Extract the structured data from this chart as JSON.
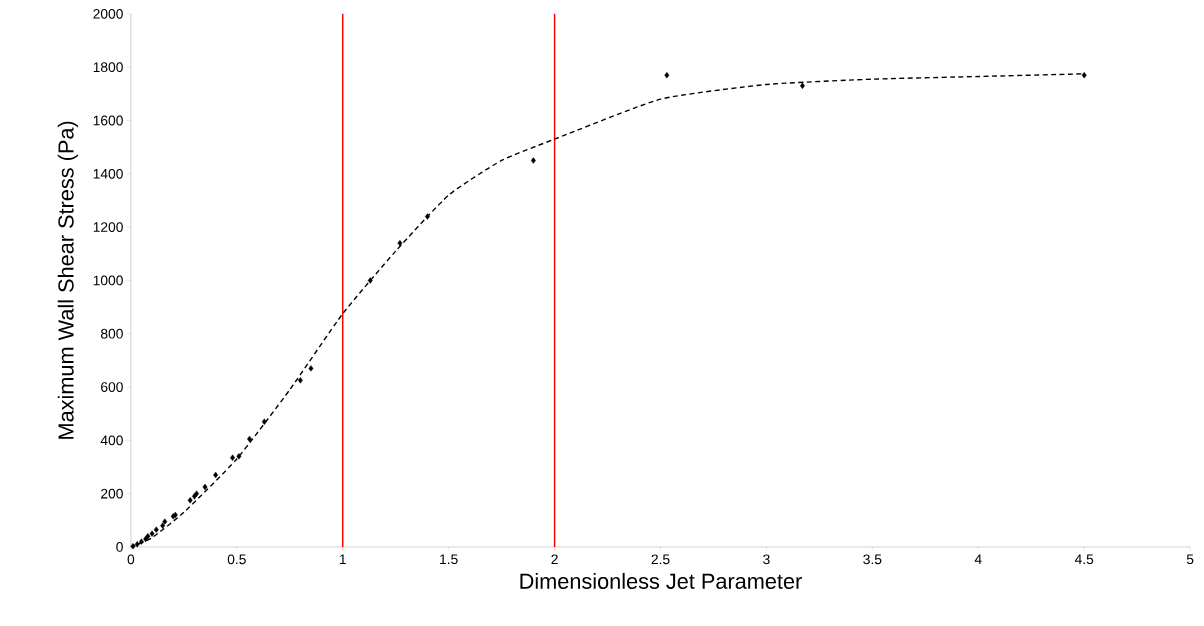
{
  "chart_data": {
    "type": "scatter",
    "xlabel": "Dimensionless Jet Parameter",
    "ylabel": "Maximum Wall Shear Stress (Pa)",
    "xlim": [
      0,
      5
    ],
    "ylim": [
      0,
      2000
    ],
    "xticks": [
      0,
      0.5,
      1,
      1.5,
      2,
      2.5,
      3,
      3.5,
      4,
      4.5,
      5
    ],
    "yticks": [
      0,
      200,
      400,
      600,
      800,
      1000,
      1200,
      1400,
      1600,
      1800,
      2000
    ],
    "grid": false,
    "series": [
      {
        "color": "#000000",
        "marker": "diamond",
        "x": [
          0.01,
          0.03,
          0.05,
          0.07,
          0.08,
          0.1,
          0.12,
          0.15,
          0.16,
          0.2,
          0.21,
          0.28,
          0.3,
          0.31,
          0.35,
          0.4,
          0.48,
          0.51,
          0.56,
          0.63,
          0.8,
          0.85,
          1.13,
          1.27,
          1.4,
          1.9,
          2.53,
          3.17,
          4.5
        ],
        "values": [
          3,
          10,
          20,
          30,
          40,
          50,
          65,
          80,
          95,
          115,
          120,
          175,
          190,
          200,
          225,
          270,
          335,
          340,
          405,
          470,
          625,
          670,
          1000,
          1140,
          1240,
          1450,
          1770,
          1730,
          1770
        ]
      },
      {
        "type": "line",
        "color": "#000000",
        "marker": "none",
        "line_style": "dashed",
        "x": [
          0,
          0.1,
          0.25,
          0.5,
          0.75,
          1,
          1.25,
          1.5,
          1.75,
          2,
          2.5,
          3,
          3.5,
          4,
          4.5
        ],
        "values": [
          0,
          35,
          130,
          330,
          590,
          875,
          1110,
          1320,
          1450,
          1530,
          1680,
          1735,
          1755,
          1765,
          1775
        ]
      }
    ],
    "ref_lines": [
      {
        "axis": "x",
        "value": 1,
        "color": "#ff0000"
      },
      {
        "axis": "x",
        "value": 2,
        "color": "#ff0000"
      }
    ]
  }
}
